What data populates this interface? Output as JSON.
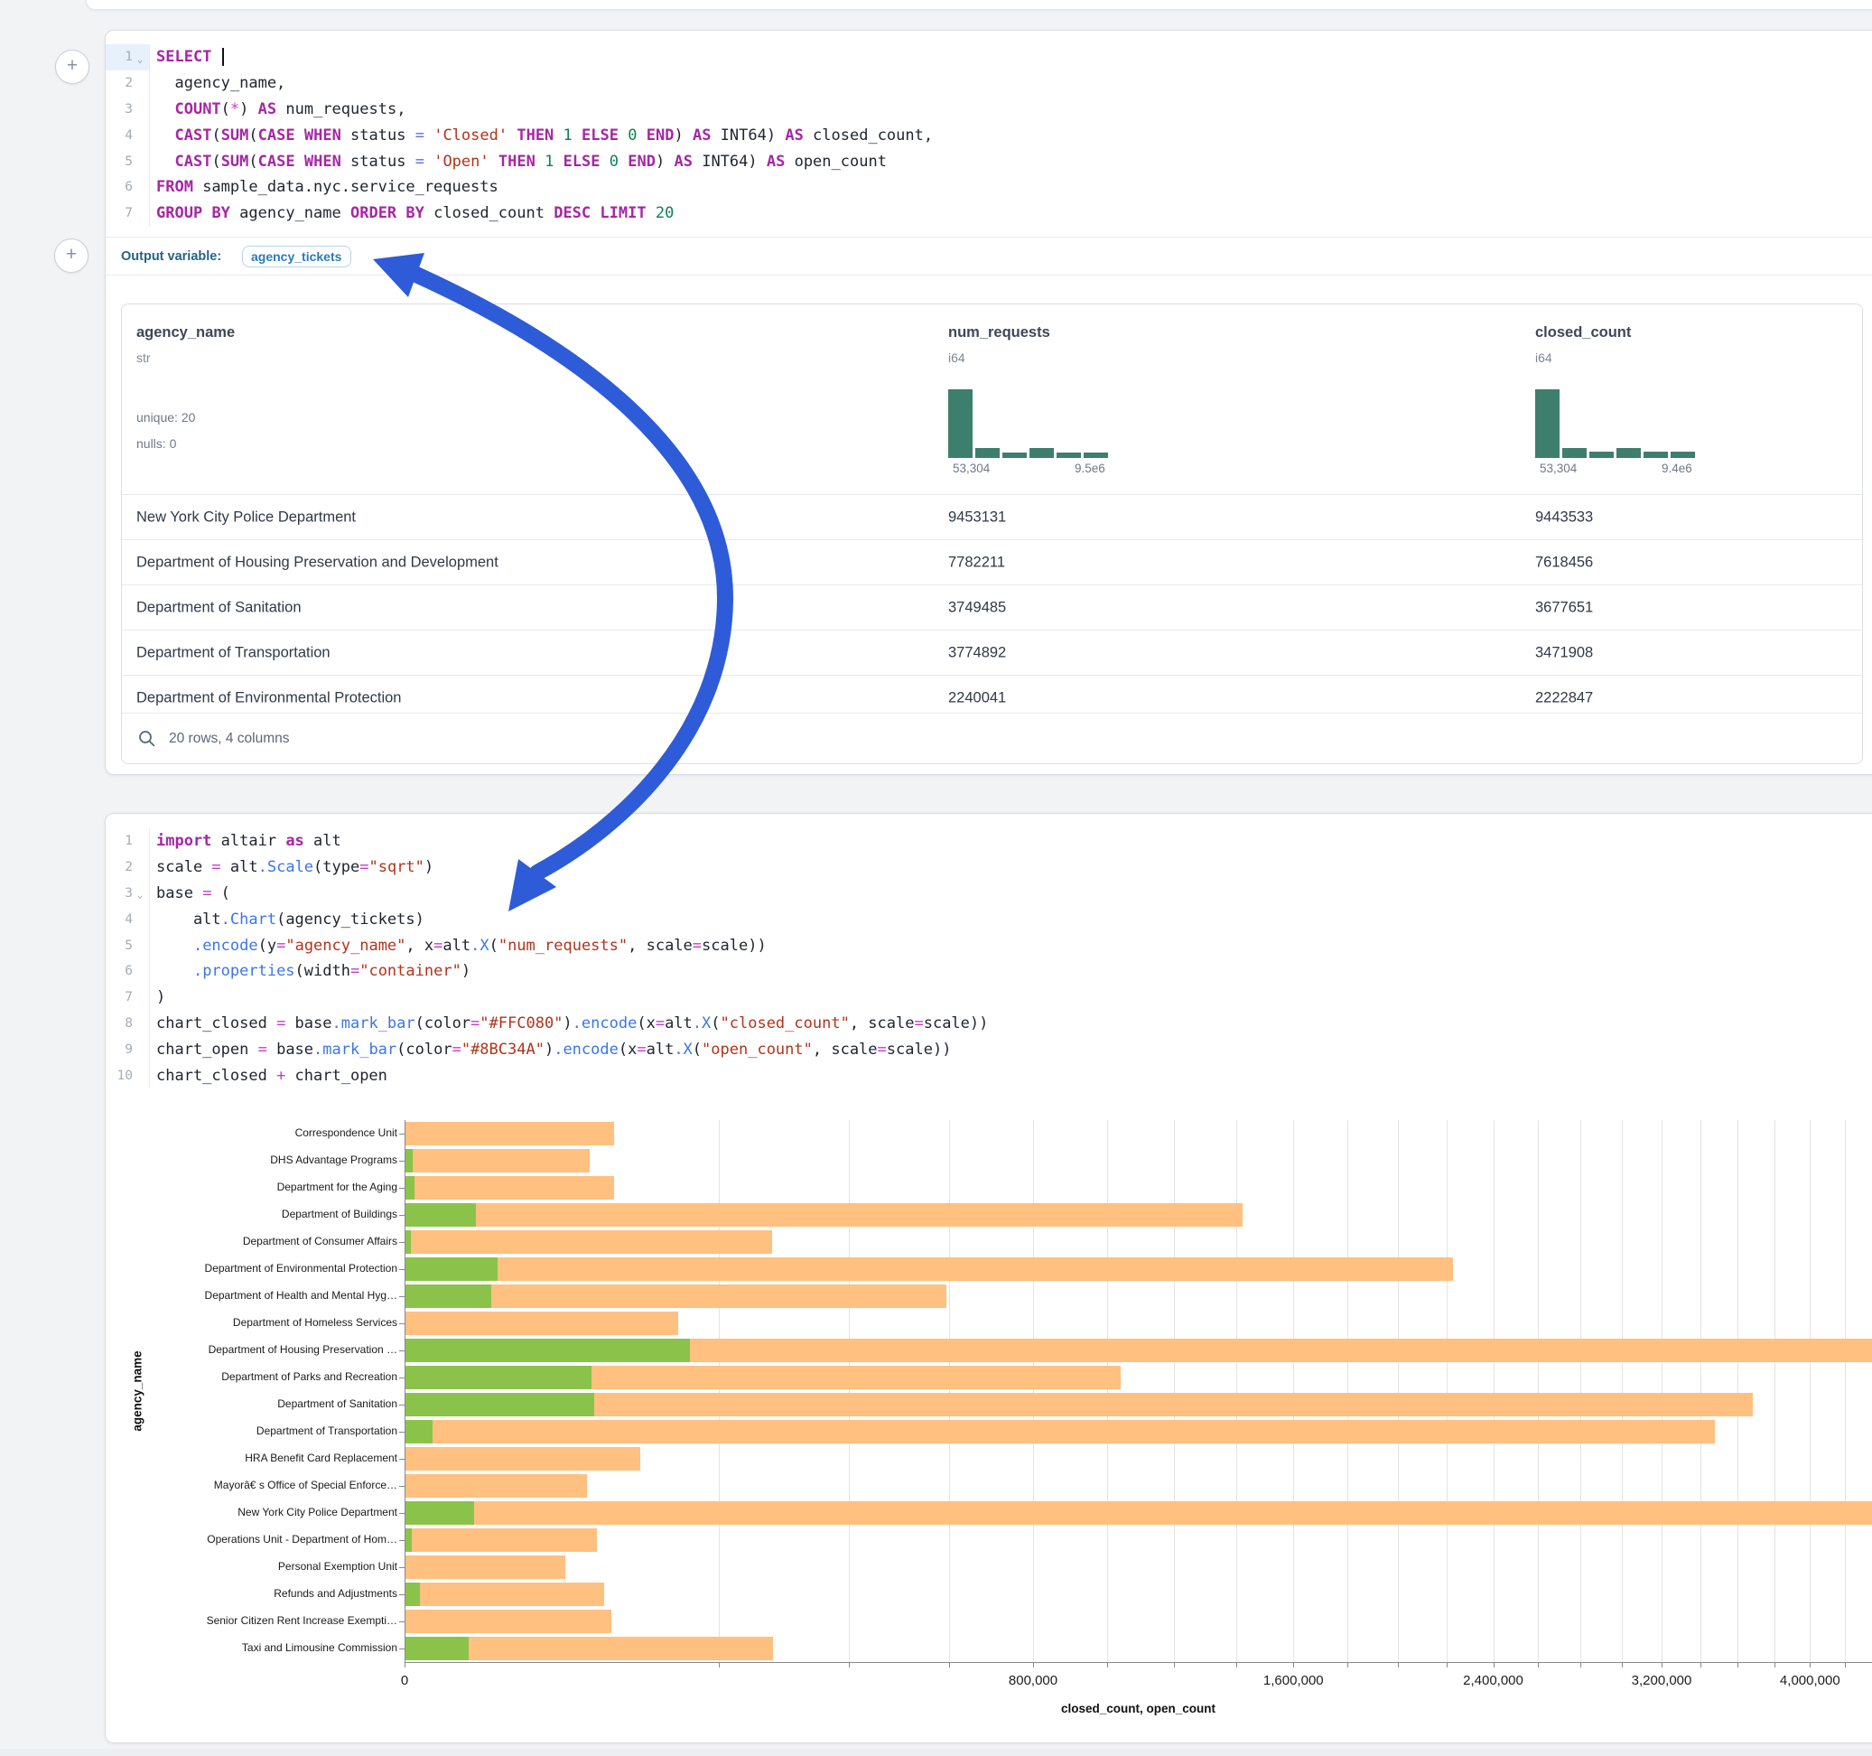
{
  "page": {
    "background": "#f2f3f5",
    "accent_blue": "#2E5BD8"
  },
  "cells": {
    "sql": {
      "add_button_label": "+",
      "active_line": 1,
      "folds": [
        1
      ],
      "lines": [
        [
          [
            "kw",
            "SELECT"
          ],
          [
            "pl",
            " "
          ],
          [
            "caret",
            ""
          ]
        ],
        [
          [
            "pl",
            "  agency_name,"
          ]
        ],
        [
          [
            "pl",
            "  "
          ],
          [
            "kw",
            "COUNT"
          ],
          [
            "pl",
            "("
          ],
          [
            "op",
            "*"
          ],
          [
            "pl",
            ") "
          ],
          [
            "kw",
            "AS"
          ],
          [
            "pl",
            " num_requests,"
          ]
        ],
        [
          [
            "pl",
            "  "
          ],
          [
            "kw",
            "CAST"
          ],
          [
            "pl",
            "("
          ],
          [
            "kw",
            "SUM"
          ],
          [
            "pl",
            "("
          ],
          [
            "kw",
            "CASE"
          ],
          [
            "pl",
            " "
          ],
          [
            "kw",
            "WHEN"
          ],
          [
            "pl",
            " status "
          ],
          [
            "eq",
            "="
          ],
          [
            "pl",
            " "
          ],
          [
            "str",
            "'Closed'"
          ],
          [
            "pl",
            " "
          ],
          [
            "kw",
            "THEN"
          ],
          [
            "pl",
            " "
          ],
          [
            "num",
            "1"
          ],
          [
            "pl",
            " "
          ],
          [
            "kw",
            "ELSE"
          ],
          [
            "pl",
            " "
          ],
          [
            "num",
            "0"
          ],
          [
            "pl",
            " "
          ],
          [
            "kw",
            "END"
          ],
          [
            "pl",
            ") "
          ],
          [
            "kw",
            "AS"
          ],
          [
            "pl",
            " INT64) "
          ],
          [
            "kw",
            "AS"
          ],
          [
            "pl",
            " closed_count,"
          ]
        ],
        [
          [
            "pl",
            "  "
          ],
          [
            "kw",
            "CAST"
          ],
          [
            "pl",
            "("
          ],
          [
            "kw",
            "SUM"
          ],
          [
            "pl",
            "("
          ],
          [
            "kw",
            "CASE"
          ],
          [
            "pl",
            " "
          ],
          [
            "kw",
            "WHEN"
          ],
          [
            "pl",
            " status "
          ],
          [
            "eq",
            "="
          ],
          [
            "pl",
            " "
          ],
          [
            "str",
            "'Open'"
          ],
          [
            "pl",
            " "
          ],
          [
            "kw",
            "THEN"
          ],
          [
            "pl",
            " "
          ],
          [
            "num",
            "1"
          ],
          [
            "pl",
            " "
          ],
          [
            "kw",
            "ELSE"
          ],
          [
            "pl",
            " "
          ],
          [
            "num",
            "0"
          ],
          [
            "pl",
            " "
          ],
          [
            "kw",
            "END"
          ],
          [
            "pl",
            ") "
          ],
          [
            "kw",
            "AS"
          ],
          [
            "pl",
            " INT64) "
          ],
          [
            "kw",
            "AS"
          ],
          [
            "pl",
            " open_count"
          ]
        ],
        [
          [
            "kw",
            "FROM"
          ],
          [
            "pl",
            " sample_data.nyc.service_requests"
          ]
        ],
        [
          [
            "kw",
            "GROUP"
          ],
          [
            "pl",
            " "
          ],
          [
            "kw",
            "BY"
          ],
          [
            "pl",
            " agency_name "
          ],
          [
            "kw",
            "ORDER"
          ],
          [
            "pl",
            " "
          ],
          [
            "kw",
            "BY"
          ],
          [
            "pl",
            " closed_count "
          ],
          [
            "kw",
            "DESC"
          ],
          [
            "pl",
            " "
          ],
          [
            "kw",
            "LIMIT"
          ],
          [
            "pl",
            " "
          ],
          [
            "num",
            "20"
          ]
        ]
      ],
      "output_variable": {
        "label": "Output variable:",
        "value": "agency_tickets"
      }
    },
    "python": {
      "add_button_label": "+",
      "active_line": 0,
      "folds": [
        3
      ],
      "lines": [
        [
          [
            "kw",
            "import"
          ],
          [
            "pl",
            " altair "
          ],
          [
            "kw",
            "as"
          ],
          [
            "pl",
            " alt"
          ]
        ],
        [
          [
            "pl",
            "scale "
          ],
          [
            "op",
            "="
          ],
          [
            "pl",
            " alt"
          ],
          [
            "fn",
            ".Scale"
          ],
          [
            "pl",
            "(type"
          ],
          [
            "op",
            "="
          ],
          [
            "str",
            "\"sqrt\""
          ],
          [
            "pl",
            ")"
          ]
        ],
        [
          [
            "pl",
            "base "
          ],
          [
            "op",
            "="
          ],
          [
            "pl",
            " ("
          ]
        ],
        [
          [
            "pl",
            "    alt"
          ],
          [
            "fn",
            ".Chart"
          ],
          [
            "pl",
            "(agency_tickets)"
          ]
        ],
        [
          [
            "pl",
            "    "
          ],
          [
            "fn",
            ".encode"
          ],
          [
            "pl",
            "(y"
          ],
          [
            "op",
            "="
          ],
          [
            "str",
            "\"agency_name\""
          ],
          [
            "pl",
            ", x"
          ],
          [
            "op",
            "="
          ],
          [
            "pl",
            "alt"
          ],
          [
            "fn",
            ".X"
          ],
          [
            "pl",
            "("
          ],
          [
            "str",
            "\"num_requests\""
          ],
          [
            "pl",
            ", scale"
          ],
          [
            "op",
            "="
          ],
          [
            "pl",
            "scale))"
          ]
        ],
        [
          [
            "pl",
            "    "
          ],
          [
            "fn",
            ".properties"
          ],
          [
            "pl",
            "(width"
          ],
          [
            "op",
            "="
          ],
          [
            "str",
            "\"container\""
          ],
          [
            "pl",
            ")"
          ]
        ],
        [
          [
            "pl",
            ")"
          ]
        ],
        [
          [
            "pl",
            "chart_closed "
          ],
          [
            "op",
            "="
          ],
          [
            "pl",
            " base"
          ],
          [
            "fn",
            ".mark_bar"
          ],
          [
            "pl",
            "(color"
          ],
          [
            "op",
            "="
          ],
          [
            "str",
            "\"#FFC080\""
          ],
          [
            "pl",
            ")"
          ],
          [
            "fn",
            ".encode"
          ],
          [
            "pl",
            "(x"
          ],
          [
            "op",
            "="
          ],
          [
            "pl",
            "alt"
          ],
          [
            "fn",
            ".X"
          ],
          [
            "pl",
            "("
          ],
          [
            "str",
            "\"closed_count\""
          ],
          [
            "pl",
            ", scale"
          ],
          [
            "op",
            "="
          ],
          [
            "pl",
            "scale))"
          ]
        ],
        [
          [
            "pl",
            "chart_open "
          ],
          [
            "op",
            "="
          ],
          [
            "pl",
            " base"
          ],
          [
            "fn",
            ".mark_bar"
          ],
          [
            "pl",
            "(color"
          ],
          [
            "op",
            "="
          ],
          [
            "str",
            "\"#8BC34A\""
          ],
          [
            "pl",
            ")"
          ],
          [
            "fn",
            ".encode"
          ],
          [
            "pl",
            "(x"
          ],
          [
            "op",
            "="
          ],
          [
            "pl",
            "alt"
          ],
          [
            "fn",
            ".X"
          ],
          [
            "pl",
            "("
          ],
          [
            "str",
            "\"open_count\""
          ],
          [
            "pl",
            ", scale"
          ],
          [
            "op",
            "="
          ],
          [
            "pl",
            "scale))"
          ]
        ],
        [
          [
            "pl",
            "chart_closed "
          ],
          [
            "op",
            "+"
          ],
          [
            "pl",
            " chart_open"
          ]
        ]
      ]
    }
  },
  "table": {
    "columns": [
      {
        "name": "agency_name",
        "type": "str",
        "stats": [
          "unique: 20",
          "nulls: 0"
        ]
      },
      {
        "name": "num_requests",
        "type": "i64",
        "hist": {
          "bins": [
            100,
            14,
            8,
            14,
            8,
            8
          ],
          "min_label": "53,304",
          "max_label": "9.5e6"
        }
      },
      {
        "name": "closed_count",
        "type": "i64",
        "hist": {
          "bins": [
            100,
            15,
            9,
            15,
            9,
            9
          ],
          "min_label": "53,304",
          "max_label": "9.4e6"
        }
      }
    ],
    "rows": [
      [
        "New York City Police Department",
        "9453131",
        "9443533"
      ],
      [
        "Department of Housing Preservation and Development",
        "7782211",
        "7618456"
      ],
      [
        "Department of Sanitation",
        "3749485",
        "3677651"
      ],
      [
        "Department of Transportation",
        "3774892",
        "3471908"
      ],
      [
        "Department of Environmental Protection",
        "2240041",
        "2222847"
      ]
    ],
    "footer": "20 rows, 4 columns",
    "histogram_color": "#3E7E6C"
  },
  "annotation_arrow": {
    "color": "#2E5BD8",
    "description": "curved double-headed arrow linking the Output variable pill to alt.Chart(agency_tickets)"
  },
  "chart_data": {
    "type": "bar",
    "orientation": "horizontal",
    "x_scale": "sqrt",
    "title": "",
    "xlabel": "closed_count, open_count",
    "ylabel": "agency_name",
    "categories": [
      "Correspondence Unit",
      "DHS Advantage Programs",
      "Department for the Aging",
      "Department of Buildings",
      "Department of Consumer Affairs",
      "Department of Environmental Protection",
      "Department of Health and Mental Hyg…",
      "Department of Homeless Services",
      "Department of Housing Preservation …",
      "Department of Parks and Recreation",
      "Department of Sanitation",
      "Department of Transportation",
      "HRA Benefit Card Replacement",
      "Mayorâ€ s Office of Special Enforce…",
      "New York City Police Department",
      "Operations Unit - Department of Hom…",
      "Personal Exemption Unit",
      "Refunds and Adjustments",
      "Senior Citizen Rent Increase Exempti…",
      "Taxi and Limousine Commission"
    ],
    "series": [
      {
        "name": "closed_count",
        "color": "#FFC080",
        "values": [
          88000,
          69000,
          88000,
          1420000,
          272000,
          2222847,
          592000,
          151000,
          7618456,
          1036000,
          3677651,
          3471908,
          112000,
          67000,
          9443533,
          74000,
          52000,
          80000,
          86000,
          273000
        ]
      },
      {
        "name": "open_count",
        "color": "#8BC34A",
        "values": [
          0,
          100,
          150,
          10000,
          50,
          17194,
          15000,
          0,
          163755,
          70000,
          71834,
          1500,
          0,
          0,
          9598,
          80,
          0,
          400,
          0,
          8000
        ]
      }
    ],
    "x_ticks": [
      0,
      800000,
      1600000,
      2400000,
      3200000,
      4000000
    ],
    "x_tick_labels": [
      "0",
      "800,000",
      "1,600,000",
      "2,400,000",
      "3,200,000",
      "4,000,000"
    ],
    "grid_step": 200000,
    "grid": true,
    "legend_position": "none",
    "note": "bars larger than ~4.4e6 run off the right edge of the view"
  }
}
